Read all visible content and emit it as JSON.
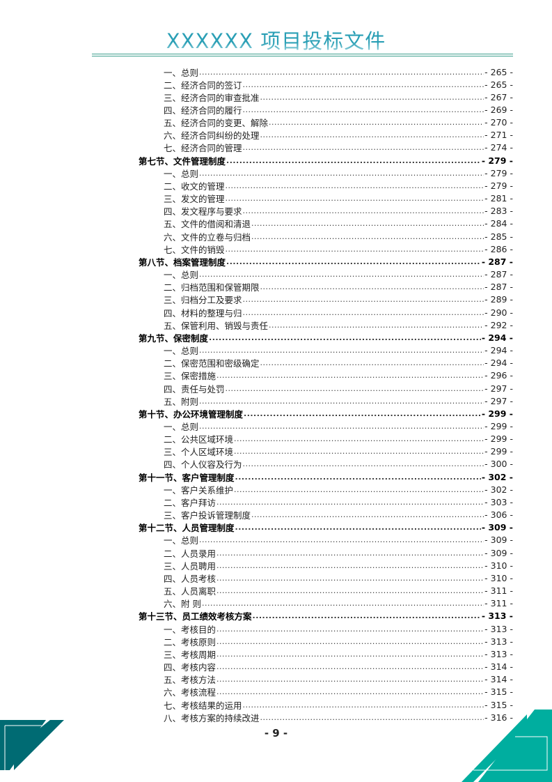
{
  "header": {
    "title": "XXXXXX 项目投标文件"
  },
  "toc": [
    {
      "label": "一、总则",
      "page": "- 265 -",
      "level": "sub"
    },
    {
      "label": "二、经济合同的签订",
      "page": "- 265 -",
      "level": "sub"
    },
    {
      "label": "三、经济合同的审查批准",
      "page": "- 267 -",
      "level": "sub"
    },
    {
      "label": "四、经济合同的履行",
      "page": "- 269 -",
      "level": "sub"
    },
    {
      "label": "五、经济合同的变更、解除",
      "page": "- 270 -",
      "level": "sub"
    },
    {
      "label": "六、经济合同纠纷的处理",
      "page": "- 271 -",
      "level": "sub"
    },
    {
      "label": "七、经济合同的管理",
      "page": "- 274 -",
      "level": "sub"
    },
    {
      "label": "第七节、文件管理制度",
      "page": "- 279 -",
      "level": "sec"
    },
    {
      "label": "一、总则",
      "page": "- 279 -",
      "level": "sub"
    },
    {
      "label": "二、收文的管理",
      "page": "- 279 -",
      "level": "sub"
    },
    {
      "label": "三、发文的管理",
      "page": "- 281 -",
      "level": "sub"
    },
    {
      "label": "四、发文程序与要求",
      "page": "- 283 -",
      "level": "sub"
    },
    {
      "label": "五、文件的借阅和清退",
      "page": "- 284 -",
      "level": "sub"
    },
    {
      "label": "六、文件的立卷与归档",
      "page": "- 285 -",
      "level": "sub"
    },
    {
      "label": "七、文件的销毁",
      "page": "- 286 -",
      "level": "sub"
    },
    {
      "label": "第八节、档案管理制度",
      "page": "- 287 -",
      "level": "sec"
    },
    {
      "label": "一、总则",
      "page": "- 287 -",
      "level": "sub"
    },
    {
      "label": "二、归档范围和保管期限",
      "page": "- 287 -",
      "level": "sub"
    },
    {
      "label": "三、归档分工及要求",
      "page": "- 289 -",
      "level": "sub"
    },
    {
      "label": "四、材料的整理与归",
      "page": "- 290 -",
      "level": "sub"
    },
    {
      "label": "五、保管利用、销毁与责任",
      "page": "- 292 -",
      "level": "sub"
    },
    {
      "label": "第九节、保密制度",
      "page": "- 294 -",
      "level": "sec"
    },
    {
      "label": "一、总则",
      "page": "- 294 -",
      "level": "sub"
    },
    {
      "label": "二、保密范围和密级确定",
      "page": "- 294 -",
      "level": "sub"
    },
    {
      "label": "三、保密措施",
      "page": "- 296 -",
      "level": "sub"
    },
    {
      "label": "四、责任与处罚",
      "page": "- 297 -",
      "level": "sub"
    },
    {
      "label": "五、附则",
      "page": "- 297 -",
      "level": "sub"
    },
    {
      "label": "第十节、办公环境管理制度",
      "page": "- 299 -",
      "level": "sec"
    },
    {
      "label": "一、总则",
      "page": "- 299 -",
      "level": "sub"
    },
    {
      "label": "二、公共区域环境",
      "page": "- 299 -",
      "level": "sub"
    },
    {
      "label": "三、个人区域环境",
      "page": "- 299 -",
      "level": "sub"
    },
    {
      "label": "四、个人仪容及行为",
      "page": "- 300 -",
      "level": "sub"
    },
    {
      "label": "第十一节、客户管理制度",
      "page": "- 302 -",
      "level": "sec"
    },
    {
      "label": "一、客户关系维护",
      "page": "- 302 -",
      "level": "sub"
    },
    {
      "label": "二、客户拜访",
      "page": "- 303 -",
      "level": "sub"
    },
    {
      "label": "三、客户投诉管理制度",
      "page": "- 306 -",
      "level": "sub"
    },
    {
      "label": "第十二节、人员管理制度",
      "page": "- 309 -",
      "level": "sec"
    },
    {
      "label": "一、总则",
      "page": "- 309 -",
      "level": "sub"
    },
    {
      "label": "二、人员录用",
      "page": "- 309 -",
      "level": "sub"
    },
    {
      "label": "三、人员聘用",
      "page": "- 310 -",
      "level": "sub"
    },
    {
      "label": "四、人员考核",
      "page": "- 310 -",
      "level": "sub"
    },
    {
      "label": "五、人员离职",
      "page": "- 311 -",
      "level": "sub"
    },
    {
      "label": "六、附 则",
      "page": "- 311 -",
      "level": "sub"
    },
    {
      "label": "第十三节、员工绩效考核方案",
      "page": "- 313 -",
      "level": "sec"
    },
    {
      "label": "一、考核目的",
      "page": "- 313 -",
      "level": "sub"
    },
    {
      "label": "二、考核原则",
      "page": "- 313 -",
      "level": "sub"
    },
    {
      "label": "三、考核周期",
      "page": "- 313 -",
      "level": "sub"
    },
    {
      "label": "四、考核内容",
      "page": "- 314 -",
      "level": "sub"
    },
    {
      "label": "五、考核方法",
      "page": "- 314 -",
      "level": "sub"
    },
    {
      "label": "六、考核流程",
      "page": "- 315 -",
      "level": "sub"
    },
    {
      "label": "七、考核结果的运用",
      "page": "- 315 -",
      "level": "sub"
    },
    {
      "label": "八、考核方案的持续改进",
      "page": "- 316 -",
      "level": "sub"
    }
  ],
  "footer": {
    "page_number": "- 9 -"
  },
  "colors": {
    "title": "#2a9fb5",
    "rule": "#3b9e8c",
    "deco_left": "#006b73",
    "deco_right": "#00ae9f"
  }
}
